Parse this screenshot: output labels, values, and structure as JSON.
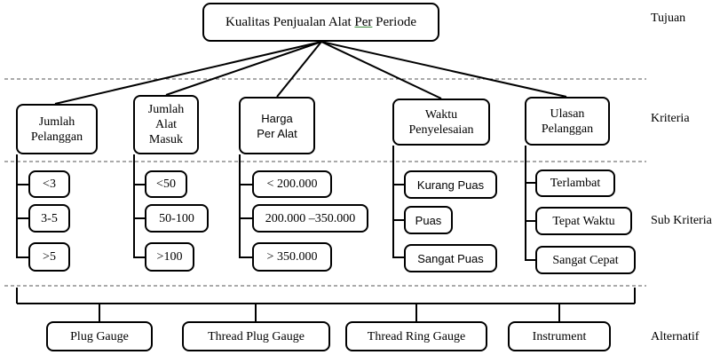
{
  "goal": {
    "text_before": "Kualitas Penjualan Alat ",
    "text_underlined": "Per",
    "text_after": " Periode"
  },
  "levels": {
    "goal": "Tujuan",
    "criteria": "Kriteria",
    "sub_criteria": "Sub Kriteria",
    "alternatives": "Alternatif"
  },
  "criteria": [
    {
      "label": "Jumlah\nPelanggan",
      "subs": [
        "<3",
        "3-5",
        ">5"
      ]
    },
    {
      "label": "Jumlah\nAlat\nMasuk",
      "subs": [
        "<50",
        "50-100",
        ">100"
      ]
    },
    {
      "label": "Harga\nPer Alat",
      "subs": [
        "< 200.000",
        "200.000 –350.000",
        "> 350.000"
      ]
    },
    {
      "label": "Waktu\nPenyelesaian",
      "subs": [
        "Kurang Puas",
        "Puas",
        "Sangat Puas"
      ]
    },
    {
      "label": "Ulasan\nPelanggan",
      "subs": [
        "Terlambat",
        "Tepat Waktu",
        "Sangat Cepat"
      ]
    }
  ],
  "alternatives": [
    "Plug Gauge",
    "Thread Plug Gauge",
    "Thread Ring Gauge",
    "Instrument"
  ]
}
